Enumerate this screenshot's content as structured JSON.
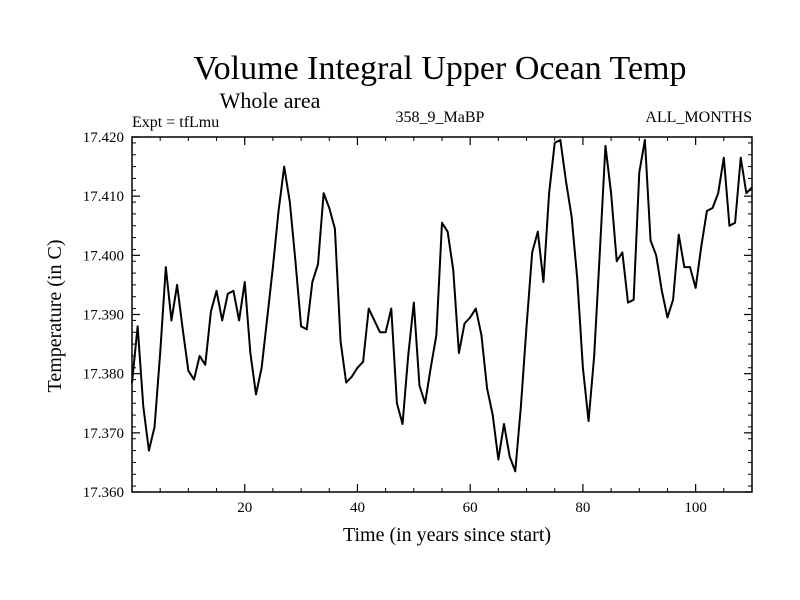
{
  "chart_data": {
    "type": "line",
    "title": "Volume Integral Upper Ocean Temp",
    "subtitle": "Whole area",
    "annotations": {
      "experiment": "Expt = tfLmu",
      "run": "358_9_MaBP",
      "months": "ALL_MONTHS"
    },
    "xlabel": "Time (in years since start)",
    "ylabel": "Temperature (in C)",
    "xlim": [
      0,
      110
    ],
    "ylim": [
      17.36,
      17.42
    ],
    "xticks": [
      20,
      40,
      60,
      80,
      100
    ],
    "xtick_labels": [
      "20",
      "40",
      "60",
      "80",
      "100"
    ],
    "yticks": [
      17.36,
      17.37,
      17.38,
      17.39,
      17.4,
      17.41,
      17.42
    ],
    "ytick_labels": [
      "17.360",
      "17.370",
      "17.380",
      "17.390",
      "17.400",
      "17.410",
      "17.420"
    ],
    "series": [
      {
        "name": "Temperature",
        "x": [
          0,
          1,
          2,
          3,
          4,
          5,
          6,
          7,
          8,
          9,
          10,
          11,
          12,
          13,
          14,
          15,
          16,
          17,
          18,
          19,
          20,
          21,
          22,
          23,
          24,
          25,
          26,
          27,
          28,
          29,
          30,
          31,
          32,
          33,
          34,
          35,
          36,
          37,
          38,
          39,
          40,
          41,
          42,
          43,
          44,
          45,
          46,
          47,
          48,
          49,
          50,
          51,
          52,
          53,
          54,
          55,
          56,
          57,
          58,
          59,
          60,
          61,
          62,
          63,
          64,
          65,
          66,
          67,
          68,
          69,
          70,
          71,
          72,
          73,
          74,
          75,
          76,
          77,
          78,
          79,
          80,
          81,
          82,
          83,
          84,
          85,
          86,
          87,
          88,
          89,
          90,
          91,
          92,
          93,
          94,
          95,
          96,
          97,
          98,
          99,
          100,
          101,
          102,
          103,
          104,
          105,
          106,
          107,
          108,
          109,
          110
        ],
        "values": [
          17.3785,
          17.388,
          17.3745,
          17.367,
          17.371,
          17.3835,
          17.398,
          17.389,
          17.395,
          17.3875,
          17.3805,
          17.379,
          17.383,
          17.3815,
          17.3905,
          17.394,
          17.389,
          17.3935,
          17.394,
          17.389,
          17.3955,
          17.3835,
          17.3765,
          17.381,
          17.3895,
          17.398,
          17.4075,
          17.415,
          17.409,
          17.399,
          17.388,
          17.3875,
          17.3955,
          17.3985,
          17.4105,
          17.408,
          17.4045,
          17.3855,
          17.3785,
          17.3795,
          17.381,
          17.382,
          17.391,
          17.389,
          17.387,
          17.387,
          17.391,
          17.375,
          17.3715,
          17.383,
          17.392,
          17.378,
          17.375,
          17.381,
          17.3865,
          17.4055,
          17.404,
          17.3975,
          17.3835,
          17.3885,
          17.3895,
          17.391,
          17.3865,
          17.3775,
          17.373,
          17.3655,
          17.3715,
          17.366,
          17.3635,
          17.3745,
          17.388,
          17.4005,
          17.404,
          17.3955,
          17.4105,
          17.419,
          17.4195,
          17.4125,
          17.4065,
          17.396,
          17.381,
          17.372,
          17.383,
          17.4005,
          17.4185,
          17.4105,
          17.399,
          17.4005,
          17.392,
          17.3925,
          17.414,
          17.4195,
          17.4025,
          17.4,
          17.394,
          17.3895,
          17.3925,
          17.4035,
          17.398,
          17.398,
          17.3945,
          17.4015,
          17.4075,
          17.408,
          17.4105,
          17.4165,
          17.405,
          17.4055,
          17.4165,
          17.4105,
          17.4115
        ]
      }
    ]
  }
}
